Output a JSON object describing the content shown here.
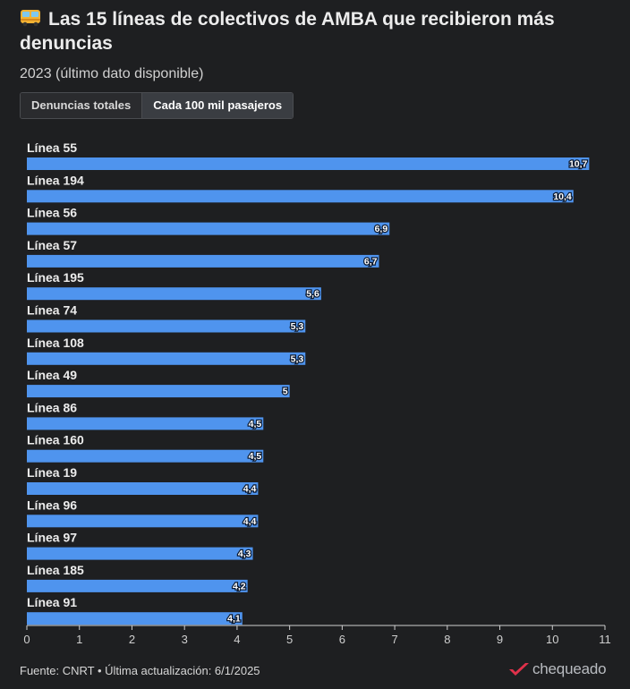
{
  "header": {
    "title_emoji": "🚌",
    "title": "Las 15 líneas de colectivos de AMBA que recibieron más denuncias",
    "subtitle": "2023 (último dato disponible)"
  },
  "tabs": [
    {
      "label": "Denuncias totales",
      "active": false
    },
    {
      "label": "Cada 100 mil pasajeros",
      "active": true
    }
  ],
  "chart_data": {
    "type": "bar",
    "orientation": "horizontal",
    "categories": [
      "Línea 55",
      "Línea 194",
      "Línea 56",
      "Línea 57",
      "Línea 195",
      "Línea 74",
      "Línea 108",
      "Línea 49",
      "Línea 86",
      "Línea 160",
      "Línea 19",
      "Línea 96",
      "Línea 97",
      "Línea 185",
      "Línea 91"
    ],
    "values": [
      10.7,
      10.4,
      6.9,
      6.7,
      5.6,
      5.3,
      5.3,
      5,
      4.5,
      4.5,
      4.4,
      4.4,
      4.3,
      4.2,
      4.1
    ],
    "value_labels": [
      "10,7",
      "10,4",
      "6,9",
      "6,7",
      "5,6",
      "5,3",
      "5,3",
      "5",
      "4,5",
      "4,5",
      "4,4",
      "4,4",
      "4,3",
      "4,2",
      "4,1"
    ],
    "xlim": [
      0,
      11
    ],
    "xticks": [
      0,
      1,
      2,
      3,
      4,
      5,
      6,
      7,
      8,
      9,
      10,
      11
    ],
    "bar_color": "#4f94ee",
    "grid": false
  },
  "footer": {
    "source": "Fuente: CNRT • Última actualización: 6/1/2025",
    "brand": "chequeado",
    "brand_color": "#e0314a"
  }
}
